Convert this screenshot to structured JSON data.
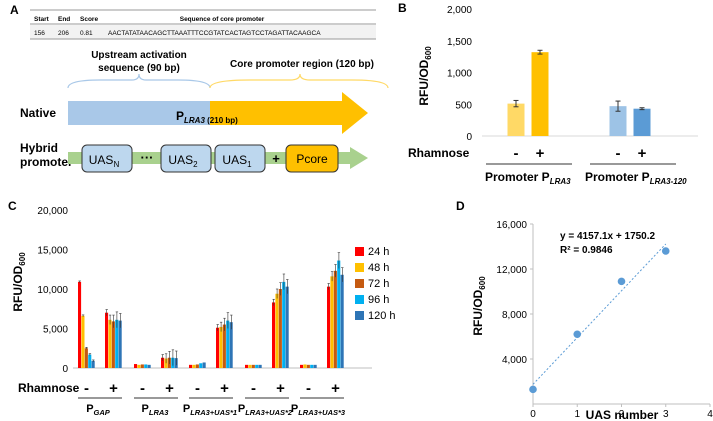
{
  "panelA": {
    "label": "A",
    "table": {
      "headers": [
        "Start",
        "End",
        "Score",
        "Sequence of core promoter"
      ],
      "row": [
        "156",
        "206",
        "0.81",
        "AACTATATAACAGCTTAAATTTCCGTATCACTAGTCCTAGATTACAAGCA"
      ]
    },
    "uas_label_line1": "Upstream activation",
    "uas_label_line2": "sequence (90 bp)",
    "core_label": "Core promoter region (120 bp)",
    "native_label": "Native",
    "native_p": "P",
    "native_sub": "LRA3",
    "native_size": " (210 bp)",
    "hybrid_line1": "Hybrid",
    "hybrid_line2": "promoter",
    "uasN": "UAS",
    "uasN_sub": "N",
    "dots": "···",
    "uas2": "UAS",
    "uas2_sub": "2",
    "uas1": "UAS",
    "uas1_sub": "1",
    "plus": "+",
    "pcore": "Pcore",
    "colors": {
      "uas_blue": "#a9c8e8",
      "core_orange": "#ffc000",
      "hybrid_green": "#a9d18e",
      "box_blue": "#bdd7ee"
    }
  },
  "panelB": {
    "label": "B",
    "chart_data": {
      "type": "bar",
      "ylabel_main": "RFU/OD",
      "ylabel_sub": "600",
      "ylim": [
        0,
        2000
      ],
      "yticks": [
        "0",
        "500",
        "1,000",
        "1,500",
        "2,000"
      ],
      "ytick_values": [
        0,
        500,
        1000,
        1500,
        2000
      ],
      "bars": [
        {
          "group": "Promoter PLRA3",
          "condition": "-",
          "value": 510,
          "error": 50,
          "color": "#ffd966"
        },
        {
          "group": "Promoter PLRA3",
          "condition": "+",
          "value": 1320,
          "error": 30,
          "color": "#ffc000"
        },
        {
          "group": "Promoter PLRA3-120",
          "condition": "-",
          "value": 470,
          "error": 80,
          "color": "#9dc3e6"
        },
        {
          "group": "Promoter PLRA3-120",
          "condition": "+",
          "value": 430,
          "error": 15,
          "color": "#5b9bd5"
        }
      ],
      "rhamnose_label": "Rhamnose",
      "signs": [
        "-",
        "+",
        "-",
        "+"
      ],
      "group1_main": "Promoter P",
      "group1_sub": "LRA3",
      "group2_main": "Promoter P",
      "group2_sub": "LRA3-120"
    }
  },
  "panelC": {
    "label": "C",
    "chart_data": {
      "type": "bar",
      "ylabel_main": "RFU/OD",
      "ylabel_sub": "600",
      "ylim": [
        0,
        20000
      ],
      "yticks": [
        "0",
        "5,000",
        "10,000",
        "15,000",
        "20,000"
      ],
      "ytick_values": [
        0,
        5000,
        10000,
        15000,
        20000
      ],
      "series": [
        {
          "name": "24 h",
          "color": "#ff0000"
        },
        {
          "name": "48 h",
          "color": "#ffc000"
        },
        {
          "name": "72 h",
          "color": "#c55a11"
        },
        {
          "name": "96 h",
          "color": "#00b0f0"
        },
        {
          "name": "120 h",
          "color": "#2e75b6"
        }
      ],
      "groups": [
        {
          "main": "P",
          "sub": "GAP",
          "minus": [
            10900,
            6600,
            2500,
            1700,
            900
          ],
          "plus": [
            7000,
            6100,
            5900,
            6100,
            6000
          ]
        },
        {
          "main": "P",
          "sub": "LRA3",
          "minus": [
            500,
            400,
            450,
            450,
            400
          ],
          "plus": [
            1300,
            1200,
            1300,
            1300,
            1250
          ]
        },
        {
          "main": "P",
          "sub": "LRA3+UAS*1",
          "minus": [
            400,
            400,
            450,
            600,
            700
          ],
          "plus": [
            5100,
            5200,
            5500,
            6000,
            5800
          ]
        },
        {
          "main": "P",
          "sub": "LRA3+UAS*2",
          "minus": [
            400,
            400,
            400,
            400,
            400
          ],
          "plus": [
            8300,
            9400,
            10000,
            10900,
            10300
          ]
        },
        {
          "main": "P",
          "sub": "LRA3+UAS*3",
          "minus": [
            400,
            450,
            400,
            400,
            400
          ],
          "plus": [
            10300,
            11600,
            12300,
            13600,
            11800
          ]
        }
      ],
      "errors_plus": [
        400,
        600,
        800,
        1000,
        900
      ],
      "rhamnose_label": "Rhamnose",
      "signs": [
        "-",
        "+"
      ]
    }
  },
  "panelD": {
    "label": "D",
    "chart_data": {
      "type": "scatter",
      "xlabel": "UAS number",
      "ylabel_main": "RFU/OD",
      "ylabel_sub": "600",
      "xlim": [
        0,
        4
      ],
      "ylim": [
        0,
        16000
      ],
      "xticks": [
        "0",
        "1",
        "2",
        "3",
        "4"
      ],
      "xtick_values": [
        0,
        1,
        2,
        3,
        4
      ],
      "yticks": [
        "4,000",
        "8,000",
        "12,000",
        "16,000"
      ],
      "ytick_values": [
        4000,
        8000,
        12000,
        16000
      ],
      "x": [
        0,
        1,
        2,
        3
      ],
      "y": [
        1300,
        6200,
        10900,
        13600
      ],
      "fit_slope": 4157.1,
      "fit_intercept": 1750.2,
      "equation": "y = 4157.1x + 1750.2",
      "r2": "R² = 0.9846",
      "color": "#5b9bd5"
    }
  }
}
